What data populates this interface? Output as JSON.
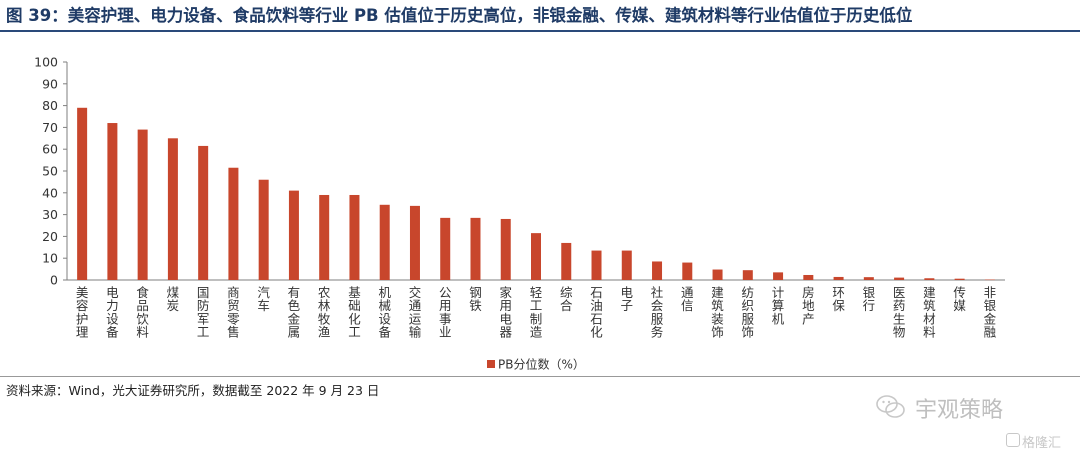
{
  "title": "图 39：美容护理、电力设备、食品饮料等行业 PB 估值位于历史高位，非银金融、传媒、建筑材料等行业估值位于历史低位",
  "source": "资料来源：Wind，光大证券研究所，数据截至 2022 年 9 月 23 日",
  "watermark": {
    "main": "宇观策略",
    "secondary": "格隆汇"
  },
  "colors": {
    "bar": "#c8462c",
    "axis": "#7f7f7f",
    "title": "#1f3b66"
  },
  "chart_data": {
    "type": "bar",
    "ylim": [
      0,
      100
    ],
    "yticks": [
      0,
      10,
      20,
      30,
      40,
      50,
      60,
      70,
      80,
      90,
      100
    ],
    "grid": false,
    "legend_position": "bottom",
    "categories": [
      "美容护理",
      "电力设备",
      "食品饮料",
      "煤炭",
      "国防军工",
      "商贸零售",
      "汽车",
      "有色金属",
      "农林牧渔",
      "基础化工",
      "机械设备",
      "交通运输",
      "公用事业",
      "钢铁",
      "家用电器",
      "轻工制造",
      "综合",
      "石油石化",
      "电子",
      "社会服务",
      "通信",
      "建筑装饰",
      "纺织服饰",
      "计算机",
      "房地产",
      "环保",
      "银行",
      "医药生物",
      "建筑材料",
      "传媒",
      "非银金融"
    ],
    "series": [
      {
        "name": "PB分位数（%）",
        "values": [
          79,
          72,
          69,
          65,
          61.5,
          51.5,
          46,
          41,
          39,
          39,
          34.5,
          34,
          28.5,
          28.5,
          28,
          21.5,
          17,
          13.5,
          13.5,
          8.5,
          8,
          4.8,
          4.5,
          3.5,
          2.3,
          1.4,
          1.3,
          1.1,
          0.8,
          0.6,
          0.2
        ]
      }
    ]
  }
}
